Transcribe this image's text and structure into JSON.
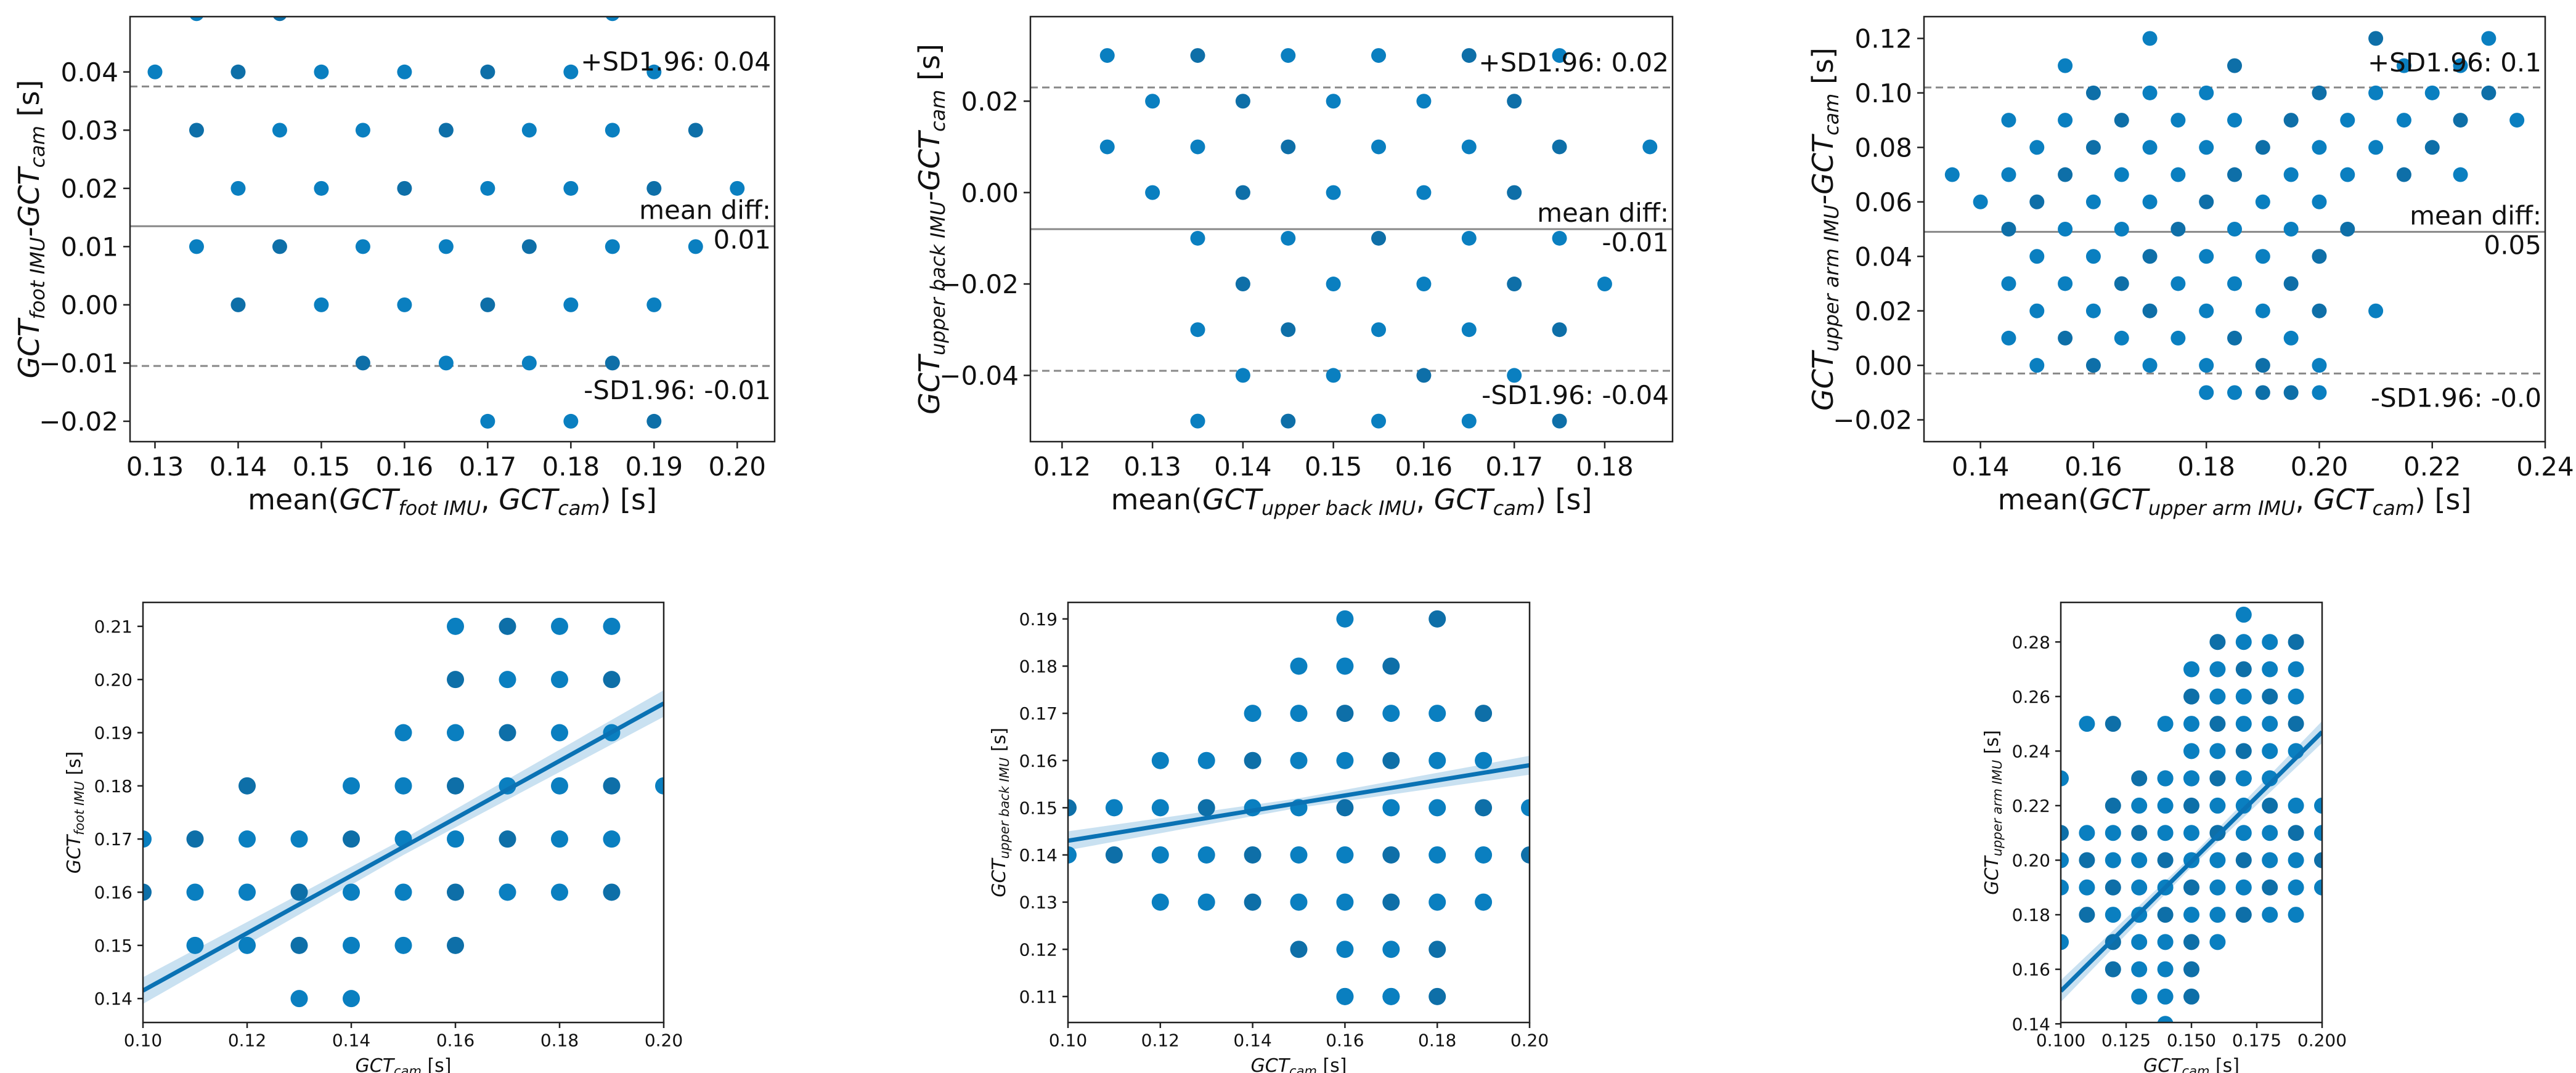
{
  "chart_data": [
    {
      "type": "scatter",
      "subtype": "bland-altman",
      "ylabel_main": "GCT",
      "ylabel_sub1": "foot IMU",
      "ylabel_mid": "-GCT",
      "ylabel_sub2": "cam",
      "ylabel_unit": " [s]",
      "xlabel_pre": "mean(",
      "xlabel_main1": "GCT",
      "xlabel_sub1": "foot IMU",
      "xlabel_sep": ", ",
      "xlabel_main2": "GCT",
      "xlabel_sub2": "cam",
      "xlabel_post": ") [s]",
      "xlim": [
        0.127,
        0.2045
      ],
      "ylim": [
        -0.0235,
        0.0495
      ],
      "xticks": [
        "0.13",
        "0.14",
        "0.15",
        "0.16",
        "0.17",
        "0.18",
        "0.19",
        "0.20"
      ],
      "yticks": [
        "−0.02",
        "−0.01",
        "0.00",
        "0.01",
        "0.02",
        "0.03",
        "0.04"
      ],
      "mean_diff": 0.0135,
      "upper_loa": 0.0375,
      "lower_loa": -0.0105,
      "upper_label": "+SD1.96: 0.04",
      "mean_label_1": "mean diff:",
      "mean_label_2": "0.01",
      "lower_label": "-SD1.96: -0.01",
      "x": [
        0.135,
        0.145,
        0.185,
        0.13,
        0.14,
        0.15,
        0.16,
        0.17,
        0.18,
        0.19,
        0.135,
        0.145,
        0.155,
        0.165,
        0.175,
        0.185,
        0.195,
        0.14,
        0.15,
        0.16,
        0.17,
        0.18,
        0.19,
        0.2,
        0.135,
        0.145,
        0.155,
        0.165,
        0.175,
        0.185,
        0.195,
        0.14,
        0.15,
        0.16,
        0.17,
        0.18,
        0.19,
        0.155,
        0.165,
        0.175,
        0.185,
        0.17,
        0.18,
        0.19
      ],
      "y": [
        0.05,
        0.05,
        0.05,
        0.04,
        0.04,
        0.04,
        0.04,
        0.04,
        0.04,
        0.04,
        0.03,
        0.03,
        0.03,
        0.03,
        0.03,
        0.03,
        0.03,
        0.02,
        0.02,
        0.02,
        0.02,
        0.02,
        0.02,
        0.02,
        0.01,
        0.01,
        0.01,
        0.01,
        0.01,
        0.01,
        0.01,
        0.0,
        0.0,
        0.0,
        0.0,
        0.0,
        0.0,
        -0.01,
        -0.01,
        -0.01,
        -0.01,
        -0.02,
        -0.02,
        -0.02
      ]
    },
    {
      "type": "scatter",
      "subtype": "bland-altman",
      "ylabel_main": "GCT",
      "ylabel_sub1": "upper back IMU",
      "ylabel_mid": "-GCT",
      "ylabel_sub2": "cam",
      "ylabel_unit": " [s]",
      "xlabel_pre": "mean(",
      "xlabel_main1": "GCT",
      "xlabel_sub1": "upper back IMU",
      "xlabel_sep": ", ",
      "xlabel_main2": "GCT",
      "xlabel_sub2": "cam",
      "xlabel_post": ") [s]",
      "xlim": [
        0.1165,
        0.1875
      ],
      "ylim": [
        -0.0545,
        0.0385
      ],
      "xticks": [
        "0.12",
        "0.13",
        "0.14",
        "0.15",
        "0.16",
        "0.17",
        "0.18"
      ],
      "yticks": [
        "−0.04",
        "−0.02",
        "0.00",
        "0.02"
      ],
      "mean_diff": -0.008,
      "upper_loa": 0.023,
      "lower_loa": -0.039,
      "upper_label": "+SD1.96: 0.02",
      "mean_label_1": "mean diff:",
      "mean_label_2": "-0.01",
      "lower_label": "-SD1.96: -0.04",
      "x": [
        0.125,
        0.135,
        0.145,
        0.155,
        0.165,
        0.175,
        0.13,
        0.14,
        0.15,
        0.16,
        0.17,
        0.125,
        0.135,
        0.145,
        0.155,
        0.165,
        0.175,
        0.185,
        0.13,
        0.14,
        0.15,
        0.16,
        0.17,
        0.135,
        0.145,
        0.155,
        0.165,
        0.175,
        0.14,
        0.15,
        0.16,
        0.17,
        0.18,
        0.135,
        0.145,
        0.155,
        0.165,
        0.175,
        0.14,
        0.15,
        0.16,
        0.17,
        0.135,
        0.145,
        0.155,
        0.165,
        0.175
      ],
      "y": [
        0.03,
        0.03,
        0.03,
        0.03,
        0.03,
        0.03,
        0.02,
        0.02,
        0.02,
        0.02,
        0.02,
        0.01,
        0.01,
        0.01,
        0.01,
        0.01,
        0.01,
        0.01,
        0.0,
        0.0,
        0.0,
        0.0,
        0.0,
        -0.01,
        -0.01,
        -0.01,
        -0.01,
        -0.01,
        -0.02,
        -0.02,
        -0.02,
        -0.02,
        -0.02,
        -0.03,
        -0.03,
        -0.03,
        -0.03,
        -0.03,
        -0.04,
        -0.04,
        -0.04,
        -0.04,
        -0.05,
        -0.05,
        -0.05,
        -0.05,
        -0.05
      ]
    },
    {
      "type": "scatter",
      "subtype": "bland-altman",
      "ylabel_main": "GCT",
      "ylabel_sub1": "upper arm IMU",
      "ylabel_mid": "-GCT",
      "ylabel_sub2": "cam",
      "ylabel_unit": " [s]",
      "xlabel_pre": "mean(",
      "xlabel_main1": "GCT",
      "xlabel_sub1": "upper arm IMU",
      "xlabel_sep": ", ",
      "xlabel_main2": "GCT",
      "xlabel_sub2": "cam",
      "xlabel_post": ") [s]",
      "xlim": [
        0.13,
        0.24
      ],
      "ylim": [
        -0.028,
        0.128
      ],
      "xticks": [
        "0.14",
        "0.16",
        "0.18",
        "0.20",
        "0.22",
        "0.24"
      ],
      "yticks": [
        "−0.02",
        "0.00",
        "0.02",
        "0.04",
        "0.06",
        "0.08",
        "0.10",
        "0.12"
      ],
      "mean_diff": 0.049,
      "upper_loa": 0.102,
      "lower_loa": -0.003,
      "upper_label": "+SD1.96: 0.1",
      "mean_label_1": "mean diff:",
      "mean_label_2": "0.05",
      "lower_label": "-SD1.96: -0.0",
      "x": [
        0.17,
        0.21,
        0.23,
        0.155,
        0.185,
        0.215,
        0.225,
        0.16,
        0.17,
        0.18,
        0.2,
        0.21,
        0.22,
        0.23,
        0.145,
        0.155,
        0.165,
        0.175,
        0.185,
        0.195,
        0.205,
        0.215,
        0.225,
        0.235,
        0.15,
        0.16,
        0.17,
        0.18,
        0.19,
        0.2,
        0.21,
        0.22,
        0.135,
        0.145,
        0.155,
        0.165,
        0.175,
        0.185,
        0.195,
        0.205,
        0.215,
        0.225,
        0.14,
        0.15,
        0.16,
        0.17,
        0.18,
        0.19,
        0.2,
        0.145,
        0.155,
        0.165,
        0.175,
        0.185,
        0.195,
        0.205,
        0.15,
        0.16,
        0.17,
        0.18,
        0.19,
        0.2,
        0.145,
        0.155,
        0.165,
        0.175,
        0.185,
        0.195,
        0.15,
        0.16,
        0.17,
        0.18,
        0.19,
        0.2,
        0.21,
        0.145,
        0.155,
        0.165,
        0.175,
        0.185,
        0.195,
        0.15,
        0.16,
        0.17,
        0.18,
        0.19,
        0.2,
        0.18,
        0.19,
        0.2,
        0.185,
        0.195
      ],
      "y": [
        0.12,
        0.12,
        0.12,
        0.11,
        0.11,
        0.11,
        0.11,
        0.1,
        0.1,
        0.1,
        0.1,
        0.1,
        0.1,
        0.1,
        0.09,
        0.09,
        0.09,
        0.09,
        0.09,
        0.09,
        0.09,
        0.09,
        0.09,
        0.09,
        0.08,
        0.08,
        0.08,
        0.08,
        0.08,
        0.08,
        0.08,
        0.08,
        0.07,
        0.07,
        0.07,
        0.07,
        0.07,
        0.07,
        0.07,
        0.07,
        0.07,
        0.07,
        0.06,
        0.06,
        0.06,
        0.06,
        0.06,
        0.06,
        0.06,
        0.05,
        0.05,
        0.05,
        0.05,
        0.05,
        0.05,
        0.05,
        0.04,
        0.04,
        0.04,
        0.04,
        0.04,
        0.04,
        0.03,
        0.03,
        0.03,
        0.03,
        0.03,
        0.03,
        0.02,
        0.02,
        0.02,
        0.02,
        0.02,
        0.02,
        0.02,
        0.01,
        0.01,
        0.01,
        0.01,
        0.01,
        0.01,
        0.0,
        0.0,
        0.0,
        0.0,
        0.0,
        0.0,
        -0.01,
        -0.01,
        -0.01,
        -0.01,
        -0.01
      ]
    },
    {
      "type": "scatter",
      "subtype": "regression",
      "ylabel_main": "GCT",
      "ylabel_sub1": "foot IMU",
      "ylabel_unit": " [s]",
      "xlabel_main": "GCT",
      "xlabel_sub": "cam",
      "xlabel_unit": " [s]",
      "xlim": [
        0.1,
        0.2
      ],
      "ylim": [
        0.1355,
        0.2145
      ],
      "xticks": [
        "0.10",
        "0.12",
        "0.14",
        "0.16",
        "0.18",
        "0.20"
      ],
      "yticks": [
        "0.14",
        "0.15",
        "0.16",
        "0.17",
        "0.18",
        "0.19",
        "0.20",
        "0.21"
      ],
      "fit": [
        [
          0.1,
          0.1415
        ],
        [
          0.2,
          0.1955
        ]
      ],
      "ci_half_width": [
        0.0025,
        0.0015,
        0.0025
      ],
      "x": [
        0.16,
        0.17,
        0.18,
        0.19,
        0.16,
        0.17,
        0.18,
        0.19,
        0.15,
        0.16,
        0.17,
        0.18,
        0.19,
        0.12,
        0.14,
        0.15,
        0.16,
        0.17,
        0.18,
        0.19,
        0.2,
        0.1,
        0.11,
        0.12,
        0.13,
        0.14,
        0.15,
        0.16,
        0.17,
        0.18,
        0.19,
        0.1,
        0.11,
        0.12,
        0.13,
        0.14,
        0.15,
        0.16,
        0.17,
        0.18,
        0.19,
        0.11,
        0.12,
        0.13,
        0.14,
        0.15,
        0.16,
        0.13,
        0.14
      ],
      "y": [
        0.21,
        0.21,
        0.21,
        0.21,
        0.2,
        0.2,
        0.2,
        0.2,
        0.19,
        0.19,
        0.19,
        0.19,
        0.19,
        0.18,
        0.18,
        0.18,
        0.18,
        0.18,
        0.18,
        0.18,
        0.18,
        0.17,
        0.17,
        0.17,
        0.17,
        0.17,
        0.17,
        0.17,
        0.17,
        0.17,
        0.17,
        0.16,
        0.16,
        0.16,
        0.16,
        0.16,
        0.16,
        0.16,
        0.16,
        0.16,
        0.16,
        0.15,
        0.15,
        0.15,
        0.15,
        0.15,
        0.15,
        0.14,
        0.14
      ]
    },
    {
      "type": "scatter",
      "subtype": "regression",
      "ylabel_main": "GCT",
      "ylabel_sub1": "upper back IMU",
      "ylabel_unit": " [s]",
      "xlabel_main": "GCT",
      "xlabel_sub": "cam",
      "xlabel_unit": " [s]",
      "xlim": [
        0.1,
        0.2
      ],
      "ylim": [
        0.1045,
        0.1935
      ],
      "xticks": [
        "0.10",
        "0.12",
        "0.14",
        "0.16",
        "0.18",
        "0.20"
      ],
      "yticks": [
        "0.11",
        "0.12",
        "0.13",
        "0.14",
        "0.15",
        "0.16",
        "0.17",
        "0.18",
        "0.19"
      ],
      "fit": [
        [
          0.1,
          0.143
        ],
        [
          0.2,
          0.159
        ]
      ],
      "ci_half_width": [
        0.002,
        0.001,
        0.002
      ],
      "x": [
        0.16,
        0.18,
        0.15,
        0.16,
        0.17,
        0.14,
        0.15,
        0.16,
        0.17,
        0.18,
        0.19,
        0.12,
        0.13,
        0.14,
        0.15,
        0.16,
        0.17,
        0.18,
        0.19,
        0.1,
        0.11,
        0.12,
        0.13,
        0.14,
        0.15,
        0.16,
        0.17,
        0.18,
        0.19,
        0.2,
        0.1,
        0.11,
        0.12,
        0.13,
        0.14,
        0.15,
        0.16,
        0.17,
        0.18,
        0.19,
        0.2,
        0.12,
        0.13,
        0.14,
        0.15,
        0.16,
        0.17,
        0.18,
        0.19,
        0.15,
        0.16,
        0.17,
        0.18,
        0.16,
        0.17,
        0.18,
        0.16,
        0.17
      ],
      "y": [
        0.19,
        0.19,
        0.18,
        0.18,
        0.18,
        0.17,
        0.17,
        0.17,
        0.17,
        0.17,
        0.17,
        0.16,
        0.16,
        0.16,
        0.16,
        0.16,
        0.16,
        0.16,
        0.16,
        0.15,
        0.15,
        0.15,
        0.15,
        0.15,
        0.15,
        0.15,
        0.15,
        0.15,
        0.15,
        0.15,
        0.14,
        0.14,
        0.14,
        0.14,
        0.14,
        0.14,
        0.14,
        0.14,
        0.14,
        0.14,
        0.14,
        0.13,
        0.13,
        0.13,
        0.13,
        0.13,
        0.13,
        0.13,
        0.13,
        0.12,
        0.12,
        0.12,
        0.12,
        0.11,
        0.11,
        0.11,
        0.11,
        0.11
      ]
    },
    {
      "type": "scatter",
      "subtype": "regression",
      "ylabel_main": "GCT",
      "ylabel_sub1": "upper arm IMU",
      "ylabel_unit": " [s]",
      "xlabel_main": "GCT",
      "xlabel_sub": "cam",
      "xlabel_unit": " [s]",
      "xlim": [
        0.1,
        0.2
      ],
      "ylim": [
        0.1405,
        0.2945
      ],
      "xticks": [
        "0.100",
        "0.125",
        "0.150",
        "0.175",
        "0.200"
      ],
      "yticks": [
        "0.14",
        "0.16",
        "0.18",
        "0.20",
        "0.22",
        "0.24",
        "0.26",
        "0.28"
      ],
      "fit": [
        [
          0.1,
          0.152
        ],
        [
          0.2,
          0.247
        ]
      ],
      "ci_half_width": [
        0.004,
        0.002,
        0.004
      ],
      "x": [
        0.17,
        0.16,
        0.17,
        0.18,
        0.19,
        0.15,
        0.16,
        0.17,
        0.18,
        0.19,
        0.15,
        0.16,
        0.17,
        0.18,
        0.19,
        0.11,
        0.12,
        0.14,
        0.15,
        0.16,
        0.17,
        0.18,
        0.19,
        0.15,
        0.16,
        0.17,
        0.18,
        0.19,
        0.14,
        0.15,
        0.16,
        0.17,
        0.18,
        0.1,
        0.13,
        0.14,
        0.15,
        0.16,
        0.17,
        0.18,
        0.12,
        0.13,
        0.14,
        0.15,
        0.16,
        0.17,
        0.18,
        0.19,
        0.2,
        0.1,
        0.11,
        0.12,
        0.13,
        0.14,
        0.15,
        0.16,
        0.17,
        0.18,
        0.19,
        0.2,
        0.1,
        0.11,
        0.12,
        0.13,
        0.14,
        0.15,
        0.16,
        0.17,
        0.18,
        0.19,
        0.2,
        0.1,
        0.11,
        0.12,
        0.13,
        0.14,
        0.15,
        0.16,
        0.17,
        0.18,
        0.19,
        0.2,
        0.11,
        0.12,
        0.13,
        0.14,
        0.15,
        0.16,
        0.17,
        0.18,
        0.19,
        0.12,
        0.13,
        0.14,
        0.15,
        0.16,
        0.1,
        0.12,
        0.13,
        0.14,
        0.15,
        0.13,
        0.14,
        0.15,
        0.14
      ],
      "y": [
        0.29,
        0.28,
        0.28,
        0.28,
        0.28,
        0.27,
        0.27,
        0.27,
        0.27,
        0.27,
        0.26,
        0.26,
        0.26,
        0.26,
        0.26,
        0.25,
        0.25,
        0.25,
        0.25,
        0.25,
        0.25,
        0.25,
        0.25,
        0.24,
        0.24,
        0.24,
        0.24,
        0.24,
        0.23,
        0.23,
        0.23,
        0.23,
        0.23,
        0.23,
        0.23,
        0.23,
        0.23,
        0.23,
        0.23,
        0.23,
        0.22,
        0.22,
        0.22,
        0.22,
        0.22,
        0.22,
        0.22,
        0.22,
        0.22,
        0.21,
        0.21,
        0.21,
        0.21,
        0.21,
        0.21,
        0.21,
        0.21,
        0.21,
        0.21,
        0.21,
        0.2,
        0.2,
        0.2,
        0.2,
        0.2,
        0.2,
        0.2,
        0.2,
        0.2,
        0.2,
        0.2,
        0.19,
        0.19,
        0.19,
        0.19,
        0.19,
        0.19,
        0.19,
        0.19,
        0.19,
        0.19,
        0.19,
        0.18,
        0.18,
        0.18,
        0.18,
        0.18,
        0.18,
        0.18,
        0.18,
        0.18,
        0.17,
        0.17,
        0.17,
        0.17,
        0.17,
        0.17,
        0.16,
        0.16,
        0.16,
        0.16,
        0.15,
        0.15,
        0.15,
        0.14
      ]
    }
  ],
  "colors": {
    "point": "#0a7fc0",
    "point_dark": "#0e6fa8",
    "fit_line": "#0a72b4",
    "ci_band": "#bcd9ee",
    "mean_line": "#888888",
    "loa_line": "#888888",
    "axis": "#222222",
    "text": "#111111"
  }
}
